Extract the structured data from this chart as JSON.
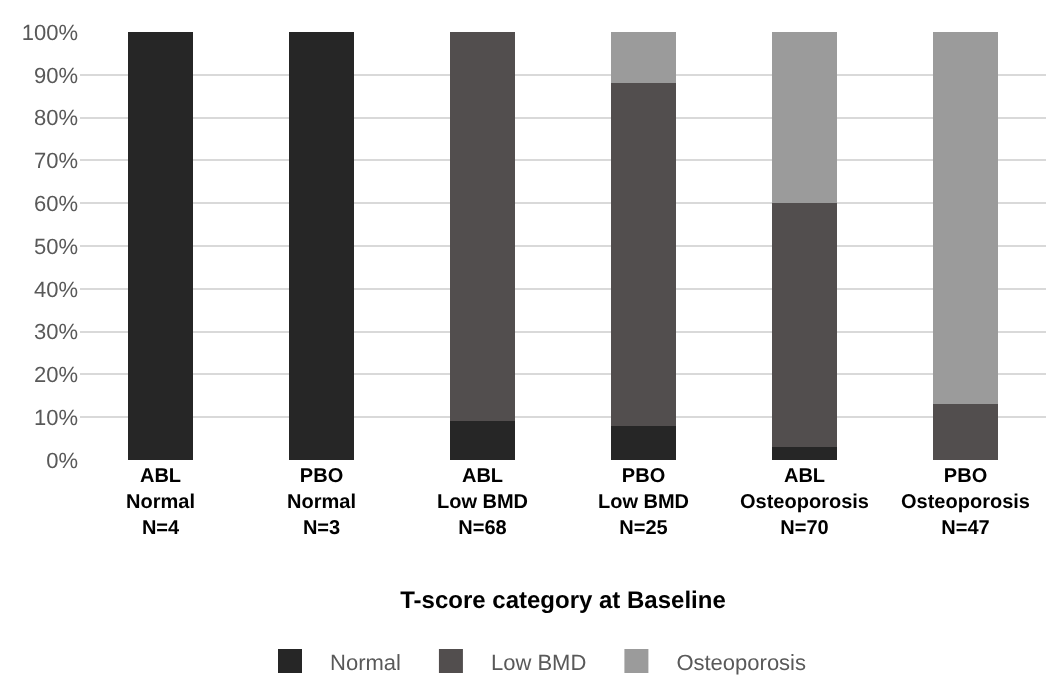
{
  "chart_data": {
    "type": "bar",
    "stacked": true,
    "categories": [
      "ABL\nNormal\nN=4",
      "PBO\nNormal\nN=3",
      "ABL\nLow BMD\nN=68",
      "PBO\nLow BMD\nN=25",
      "ABL\nOsteoporosis\nN=70",
      "PBO\nOsteoporosis\nN=47"
    ],
    "series": [
      {
        "name": "Normal",
        "color": "#262626",
        "values": [
          100,
          100,
          9,
          8,
          3,
          0
        ]
      },
      {
        "name": "Low BMD",
        "color": "#524e4e",
        "values": [
          0,
          0,
          91,
          80,
          57,
          13
        ]
      },
      {
        "name": "Osteoporosis",
        "color": "#9b9b9b",
        "values": [
          0,
          0,
          0,
          12,
          40,
          87
        ]
      }
    ],
    "xlabel": "T-score category at Baseline",
    "ylim": [
      0,
      100
    ],
    "yticks": [
      {
        "value": 0,
        "label": "0%"
      },
      {
        "value": 10,
        "label": "10%"
      },
      {
        "value": 20,
        "label": "20%"
      },
      {
        "value": 30,
        "label": "30%"
      },
      {
        "value": 40,
        "label": "40%"
      },
      {
        "value": 50,
        "label": "50%"
      },
      {
        "value": 60,
        "label": "60%"
      },
      {
        "value": 70,
        "label": "70%"
      },
      {
        "value": 80,
        "label": "80%"
      },
      {
        "value": 90,
        "label": "90%"
      },
      {
        "value": 100,
        "label": "100%"
      }
    ],
    "grid": "y",
    "legend": "bottom"
  }
}
